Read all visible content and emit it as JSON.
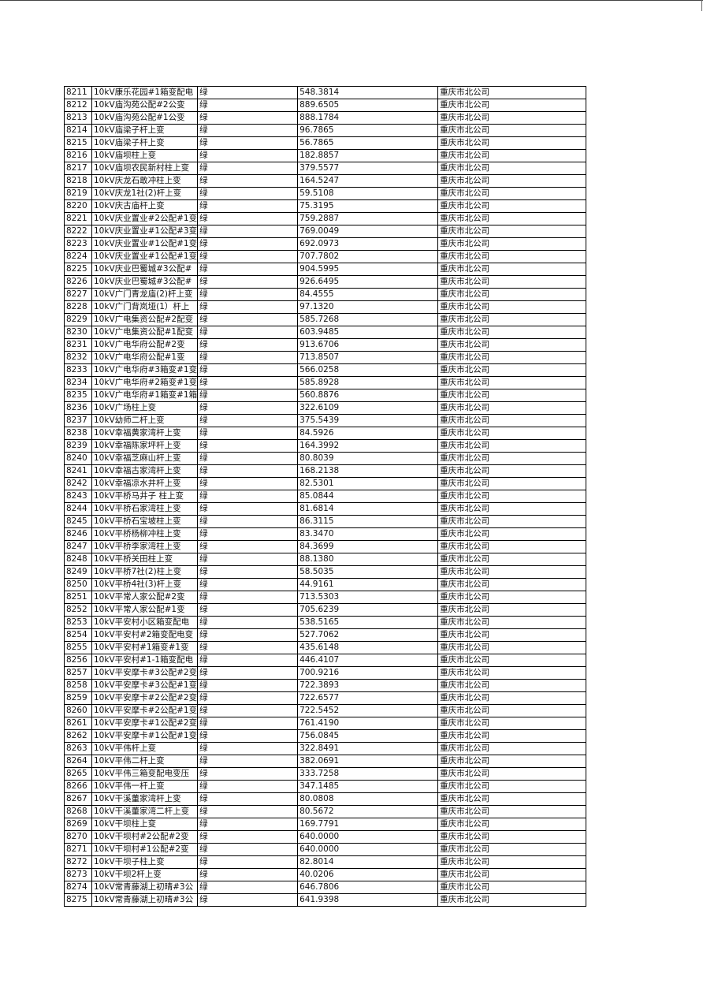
{
  "rows": [
    [
      "8211",
      "10kV康乐花园#1箱变配电",
      "绿",
      "548.3814",
      "重庆市北公司"
    ],
    [
      "8212",
      "10kV庙沟苑公配#2公变",
      "绿",
      "889.6505",
      "重庆市北公司"
    ],
    [
      "8213",
      "10kV庙沟苑公配#1公变",
      "绿",
      "888.1784",
      "重庆市北公司"
    ],
    [
      "8214",
      "10kV庙梁子杆上变",
      "绿",
      "96.7865",
      "重庆市北公司"
    ],
    [
      "8215",
      "10kV庙梁子杆上变",
      "绿",
      "56.7865",
      "重庆市北公司"
    ],
    [
      "8216",
      "10kV庙坝柱上变",
      "绿",
      "182.8857",
      "重庆市北公司"
    ],
    [
      "8217",
      "10kV庙坝农民新村柱上变",
      "绿",
      "379.5577",
      "重庆市北公司"
    ],
    [
      "8218",
      "10kV庆龙石敢冲柱上变",
      "绿",
      "164.5247",
      "重庆市北公司"
    ],
    [
      "8219",
      "10kV庆龙1社(2)杆上变",
      "绿",
      "59.5108",
      "重庆市北公司"
    ],
    [
      "8220",
      "10kV庆古庙杆上变",
      "绿",
      "75.3195",
      "重庆市北公司"
    ],
    [
      "8221",
      "10kV庆业置业#2公配#1变",
      "绿",
      "759.2887",
      "重庆市北公司"
    ],
    [
      "8222",
      "10kV庆业置业#1公配#3变",
      "绿",
      "769.0049",
      "重庆市北公司"
    ],
    [
      "8223",
      "10kV庆业置业#1公配#1变",
      "绿",
      "692.0973",
      "重庆市北公司"
    ],
    [
      "8224",
      "10kV庆业置业#1公配#1变",
      "绿",
      "707.7802",
      "重庆市北公司"
    ],
    [
      "8225",
      "10kV庆业巴蜀城#3公配#",
      "绿",
      "904.5995",
      "重庆市北公司"
    ],
    [
      "8226",
      "10kV庆业巴蜀城#3公配#",
      "绿",
      "926.6495",
      "重庆市北公司"
    ],
    [
      "8227",
      "10kV广门青龙庙(2)杆上变",
      "绿",
      "84.4555",
      "重庆市北公司"
    ],
    [
      "8228",
      "10kV广门背岚垭(1）杆上",
      "绿",
      "97.1320",
      "重庆市北公司"
    ],
    [
      "8229",
      "10kV广电集资公配#2配变",
      "绿",
      "585.7268",
      "重庆市北公司"
    ],
    [
      "8230",
      "10kV广电集资公配#1配变",
      "绿",
      "603.9485",
      "重庆市北公司"
    ],
    [
      "8231",
      "10kV广电华府公配#2变",
      "绿",
      "913.6706",
      "重庆市北公司"
    ],
    [
      "8232",
      "10kV广电华府公配#1变",
      "绿",
      "713.8507",
      "重庆市北公司"
    ],
    [
      "8233",
      "10kV广电华府#3箱变#1变",
      "绿",
      "566.0258",
      "重庆市北公司"
    ],
    [
      "8234",
      "10kV广电华府#2箱变#1变",
      "绿",
      "585.8928",
      "重庆市北公司"
    ],
    [
      "8235",
      "10kV广电华府#1箱变#1箱",
      "绿",
      "560.8876",
      "重庆市北公司"
    ],
    [
      "8236",
      "10kV广场柱上变",
      "绿",
      "322.6109",
      "重庆市北公司"
    ],
    [
      "8237",
      "10kV幼师二杆上变",
      "绿",
      "375.5439",
      "重庆市北公司"
    ],
    [
      "8238",
      "10kV幸福黄家湾杆上变",
      "绿",
      "84.5926",
      "重庆市北公司"
    ],
    [
      "8239",
      "10kV幸福陈家坪杆上变",
      "绿",
      "164.3992",
      "重庆市北公司"
    ],
    [
      "8240",
      "10kV幸福芝麻山杆上变",
      "绿",
      "80.8039",
      "重庆市北公司"
    ],
    [
      "8241",
      "10kV幸福古家湾杆上变",
      "绿",
      "168.2138",
      "重庆市北公司"
    ],
    [
      "8242",
      "10kV幸福凉水井杆上变",
      "绿",
      "82.5301",
      "重庆市北公司"
    ],
    [
      "8243",
      "10kV平桥马井子 柱上变",
      "绿",
      "85.0844",
      "重庆市北公司"
    ],
    [
      "8244",
      "10kV平桥石家湾柱上变",
      "绿",
      "81.6814",
      "重庆市北公司"
    ],
    [
      "8245",
      "10kV平桥石宝坡柱上变",
      "绿",
      "86.3115",
      "重庆市北公司"
    ],
    [
      "8246",
      "10kV平桥杨柳冲柱上变",
      "绿",
      "83.3470",
      "重庆市北公司"
    ],
    [
      "8247",
      "10kV平桥李家湾柱上变",
      "绿",
      "84.3699",
      "重庆市北公司"
    ],
    [
      "8248",
      "10kV平桥关田柱上变",
      "绿",
      "88.1380",
      "重庆市北公司"
    ],
    [
      "8249",
      "10kV平桥7社(2)柱上变",
      "绿",
      "58.5035",
      "重庆市北公司"
    ],
    [
      "8250",
      "10kV平桥4社(3)杆上变",
      "绿",
      "44.9161",
      "重庆市北公司"
    ],
    [
      "8251",
      "10kV平常人家公配#2变",
      "绿",
      "713.5303",
      "重庆市北公司"
    ],
    [
      "8252",
      "10kV平常人家公配#1变",
      "绿",
      "705.6239",
      "重庆市北公司"
    ],
    [
      "8253",
      "10kV平安村小区箱变配电",
      "绿",
      "538.5165",
      "重庆市北公司"
    ],
    [
      "8254",
      "10kV平安村#2箱变配电变",
      "绿",
      "527.7062",
      "重庆市北公司"
    ],
    [
      "8255",
      "10kV平安村#1箱变#1变",
      "绿",
      "435.6148",
      "重庆市北公司"
    ],
    [
      "8256",
      "10kV平安村#1-1箱变配电",
      "绿",
      "446.4107",
      "重庆市北公司"
    ],
    [
      "8257",
      "10kV平安摩卡#3公配#2变",
      "绿",
      "700.9216",
      "重庆市北公司"
    ],
    [
      "8258",
      "10kV平安摩卡#3公配#1变",
      "绿",
      "722.3893",
      "重庆市北公司"
    ],
    [
      "8259",
      "10kV平安摩卡#2公配#2变",
      "绿",
      "722.6577",
      "重庆市北公司"
    ],
    [
      "8260",
      "10kV平安摩卡#2公配#1变",
      "绿",
      "722.5452",
      "重庆市北公司"
    ],
    [
      "8261",
      "10kV平安摩卡#1公配#2变",
      "绿",
      "761.4190",
      "重庆市北公司"
    ],
    [
      "8262",
      "10kV平安摩卡#1公配#1变",
      "绿",
      "756.0845",
      "重庆市北公司"
    ],
    [
      "8263",
      "10kV平伟杆上变",
      "绿",
      "322.8491",
      "重庆市北公司"
    ],
    [
      "8264",
      "10kV平伟二杆上变",
      "绿",
      "382.0691",
      "重庆市北公司"
    ],
    [
      "8265",
      "10kV平伟三箱变配电变压",
      "绿",
      "333.7258",
      "重庆市北公司"
    ],
    [
      "8266",
      "10kV平伟一杆上变",
      "绿",
      "347.1485",
      "重庆市北公司"
    ],
    [
      "8267",
      "10kV干溪董家湾杆上变",
      "绿",
      "80.0808",
      "重庆市北公司"
    ],
    [
      "8268",
      "10kV干溪董家湾二杆上变",
      "绿",
      "80.5672",
      "重庆市北公司"
    ],
    [
      "8269",
      "10kV干坝柱上变",
      "绿",
      "169.7791",
      "重庆市北公司"
    ],
    [
      "8270",
      "10kV干坝村#2公配#2变",
      "绿",
      "640.0000",
      "重庆市北公司"
    ],
    [
      "8271",
      "10kV干坝村#1公配#2变",
      "绿",
      "640.0000",
      "重庆市北公司"
    ],
    [
      "8272",
      "10kV干坝子柱上变",
      "绿",
      "82.8014",
      "重庆市北公司"
    ],
    [
      "8273",
      "10kV干坝2杆上变",
      "绿",
      "40.0206",
      "重庆市北公司"
    ],
    [
      "8274",
      "10kV常青藤湖上初晴#3公",
      "绿",
      "646.7806",
      "重庆市北公司"
    ],
    [
      "8275",
      "10kV常青藤湖上初晴#3公",
      "绿",
      "641.9398",
      "重庆市北公司"
    ]
  ]
}
